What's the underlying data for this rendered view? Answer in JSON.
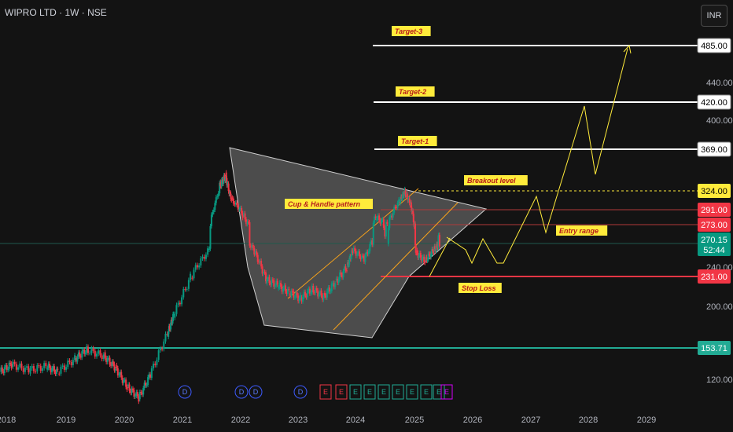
{
  "header": {
    "title": "WIPRO LTD · 1W · NSE",
    "currency": "INR"
  },
  "chart_data": {
    "type": "line",
    "symbol": "WIPRO LTD",
    "interval": "1W",
    "exchange": "NSE",
    "currency": "INR",
    "x_ticks": [
      "2018",
      "2019",
      "2020",
      "2021",
      "2022",
      "2023",
      "2024",
      "2025",
      "2026",
      "2027",
      "2028",
      "2029"
    ],
    "y_ticks": [
      120,
      200,
      240,
      400,
      440
    ],
    "y_ticks_labels": [
      "120.00",
      "200.00",
      "240.00",
      "400.00",
      "440.00"
    ],
    "price_line": [
      [
        2018.0,
        128
      ],
      [
        2018.2,
        136
      ],
      [
        2018.5,
        130
      ],
      [
        2018.8,
        134
      ],
      [
        2019.0,
        128
      ],
      [
        2019.3,
        142
      ],
      [
        2019.5,
        152
      ],
      [
        2019.8,
        145
      ],
      [
        2020.0,
        132
      ],
      [
        2020.2,
        112
      ],
      [
        2020.4,
        100
      ],
      [
        2020.6,
        125
      ],
      [
        2020.9,
        170
      ],
      [
        2021.0,
        190
      ],
      [
        2021.3,
        230
      ],
      [
        2021.6,
        260
      ],
      [
        2021.8,
        330
      ],
      [
        2021.9,
        340
      ],
      [
        2022.0,
        310
      ],
      [
        2022.2,
        285
      ],
      [
        2022.4,
        260
      ],
      [
        2022.6,
        228
      ],
      [
        2022.8,
        222
      ],
      [
        2023.0,
        215
      ],
      [
        2023.2,
        208
      ],
      [
        2023.4,
        218
      ],
      [
        2023.6,
        210
      ],
      [
        2023.8,
        225
      ],
      [
        2024.0,
        240
      ],
      [
        2024.1,
        262
      ],
      [
        2024.3,
        250
      ],
      [
        2024.5,
        282
      ],
      [
        2024.7,
        272
      ],
      [
        2024.9,
        305
      ],
      [
        2025.0,
        322
      ],
      [
        2025.1,
        300
      ],
      [
        2025.2,
        258
      ],
      [
        2025.35,
        248
      ],
      [
        2025.5,
        262
      ],
      [
        2025.6,
        270
      ]
    ],
    "projection": [
      [
        2025.6,
        270
      ],
      [
        2025.9,
        255
      ],
      [
        2026.1,
        275
      ],
      [
        2026.3,
        248
      ],
      [
        2026.7,
        300
      ],
      [
        2027.2,
        330
      ],
      [
        2027.4,
        260
      ],
      [
        2028.0,
        418
      ],
      [
        2028.2,
        355
      ],
      [
        2028.8,
        485
      ]
    ],
    "levels": [
      {
        "label": "Target-3",
        "value": 485.0,
        "value_label": "485.00",
        "color": "#ffffff"
      },
      {
        "label": "Target-2",
        "value": 420.0,
        "value_label": "420.00",
        "color": "#ffffff"
      },
      {
        "label": "Target-1",
        "value": 369.0,
        "value_label": "369.00",
        "color": "#ffffff"
      },
      {
        "label": "Breakout level",
        "value": 324.0,
        "value_label": "324.00",
        "color": "#ffeb3b"
      },
      {
        "label": "",
        "value": 291.0,
        "value_label": "291.00",
        "color": "#f23645"
      },
      {
        "label": "",
        "value": 273.0,
        "value_label": "273.00",
        "color": "#f23645"
      },
      {
        "label": "Entry range",
        "value": 270.15,
        "value_label": "270.15",
        "color": "#089981"
      },
      {
        "label": "Stop Loss",
        "value": 231.0,
        "value_label": "231.00",
        "color": "#f23645"
      },
      {
        "label": "",
        "value": 153.71,
        "value_label": "153.71",
        "color": "#22ab94"
      }
    ],
    "current_price": {
      "value": "270.15",
      "countdown": "52:44"
    },
    "annotations": [
      "Cup & Handle pattern",
      "Breakout level",
      "Entry range",
      "Stop Loss",
      "Target-1",
      "Target-2",
      "Target-3"
    ],
    "events": [
      {
        "letter": "D",
        "x": 2021.0
      },
      {
        "letter": "D",
        "x": 2022.0
      },
      {
        "letter": "D",
        "x": 2022.25
      },
      {
        "letter": "D",
        "x": 2023.05
      },
      {
        "letter": "E",
        "x": 2023.5
      },
      {
        "letter": "E",
        "x": 2023.72
      },
      {
        "letter": "E",
        "x": 2023.95
      },
      {
        "letter": "E",
        "x": 2024.18
      },
      {
        "letter": "E",
        "x": 2024.42
      },
      {
        "letter": "E",
        "x": 2024.66
      },
      {
        "letter": "E",
        "x": 2024.87
      },
      {
        "letter": "E",
        "x": 2025.08
      },
      {
        "letter": "E",
        "x": 2025.3
      },
      {
        "letter": "E",
        "x": 2025.55
      }
    ],
    "grid": false
  }
}
